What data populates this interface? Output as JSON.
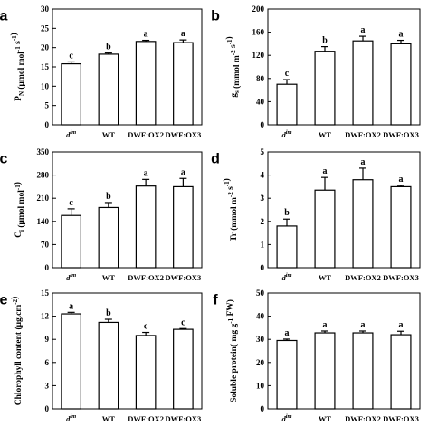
{
  "chart_data": [
    {
      "type": "bar",
      "panel_label": "a",
      "ylabel": "P_N (μmol mol⁻¹ s⁻¹)",
      "categories": [
        "dim",
        "WT",
        "DWF:OX2",
        "DWF:OX3"
      ],
      "values": [
        15.8,
        18.3,
        21.6,
        21.3
      ],
      "errors": [
        0.5,
        0.3,
        0.3,
        0.7
      ],
      "significance": [
        "c",
        "b",
        "a",
        "a"
      ],
      "ylim": [
        0,
        30
      ],
      "yticks": [
        "0",
        "5",
        "10",
        "15",
        "20",
        "25",
        "30"
      ]
    },
    {
      "type": "bar",
      "panel_label": "b",
      "ylabel": "g_s (mmol m⁻² s⁻¹)",
      "categories": [
        "dim",
        "WT",
        "DWF:OX2",
        "DWF:OX3"
      ],
      "values": [
        70,
        127,
        145,
        140
      ],
      "errors": [
        8,
        8,
        8,
        6
      ],
      "significance": [
        "c",
        "b",
        "a",
        "a"
      ],
      "ylim": [
        0,
        200
      ],
      "yticks": [
        "0",
        "40",
        "80",
        "120",
        "160",
        "200"
      ]
    },
    {
      "type": "bar",
      "panel_label": "c",
      "ylabel": "C_i (μmol mol⁻¹)",
      "categories": [
        "dim",
        "WT",
        "DWF:OX2",
        "DWF:OX3"
      ],
      "values": [
        158,
        182,
        247,
        245
      ],
      "errors": [
        20,
        15,
        20,
        25
      ],
      "significance": [
        "c",
        "b",
        "a",
        "a"
      ],
      "ylim": [
        0,
        350
      ],
      "yticks": [
        "0",
        "70",
        "140",
        "210",
        "280",
        "350"
      ]
    },
    {
      "type": "bar",
      "panel_label": "d",
      "ylabel": "Tr (mmol m⁻² s⁻¹)",
      "categories": [
        "dim",
        "WT",
        "DWF:OX2",
        "DWF:OX3"
      ],
      "values": [
        1.8,
        3.35,
        3.8,
        3.5
      ],
      "errors": [
        0.3,
        0.55,
        0.5,
        0.05
      ],
      "significance": [
        "b",
        "a",
        "a",
        "a"
      ],
      "ylim": [
        0,
        5
      ],
      "yticks": [
        "0",
        "1",
        "2",
        "3",
        "4",
        "5"
      ]
    },
    {
      "type": "bar",
      "panel_label": "e",
      "ylabel": "Chlorophyll content (μg.cm⁻²)",
      "categories": [
        "dim",
        "WT",
        "DWF:OX2",
        "DWF:OX3"
      ],
      "values": [
        12.3,
        11.2,
        9.5,
        10.3
      ],
      "errors": [
        0.2,
        0.4,
        0.4,
        0.1
      ],
      "significance": [
        "a",
        "b",
        "c",
        "c"
      ],
      "ylim": [
        0,
        15
      ],
      "yticks": [
        "0",
        "3",
        "6",
        "9",
        "12",
        "15"
      ]
    },
    {
      "type": "bar",
      "panel_label": "f",
      "ylabel": "Soluble protein( mg g⁻¹ FW)",
      "categories": [
        "dim",
        "WT",
        "DWF:OX2",
        "DWF:OX3"
      ],
      "values": [
        29.5,
        32.8,
        32.8,
        32.0
      ],
      "errors": [
        0.6,
        0.8,
        0.8,
        1.5
      ],
      "significance": [
        "a",
        "a",
        "a",
        "a"
      ],
      "ylim": [
        0,
        50
      ],
      "yticks": [
        "0",
        "10",
        "20",
        "30",
        "40",
        "50"
      ]
    }
  ]
}
